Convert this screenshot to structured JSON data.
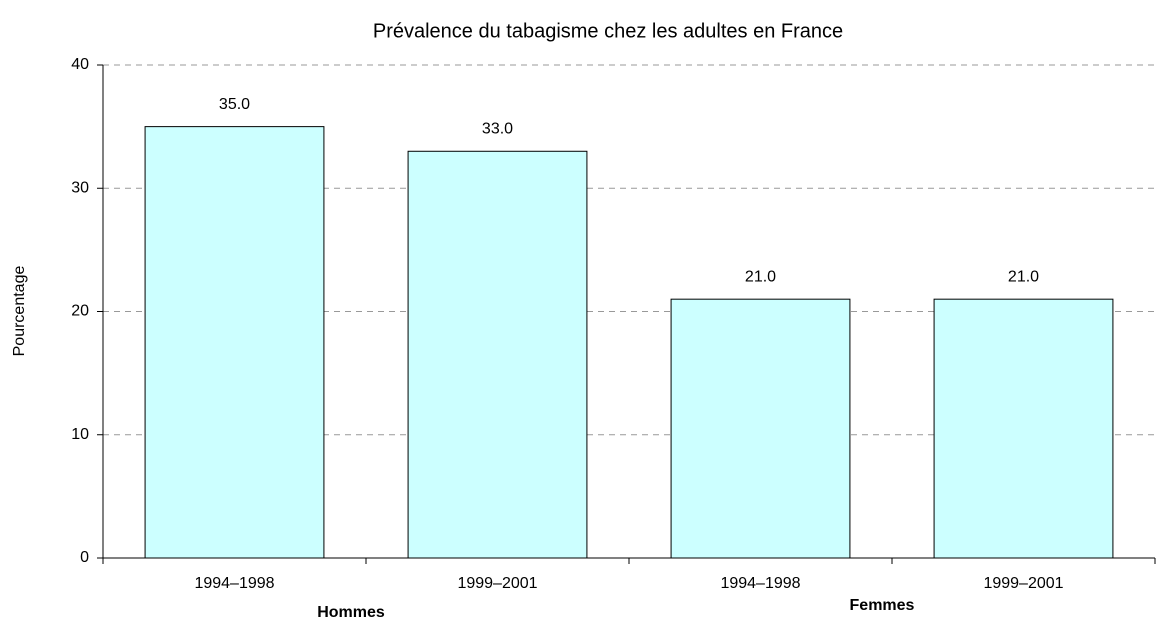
{
  "chart_data": {
    "type": "bar",
    "title": "Prévalence du tabagisme chez les adultes en France",
    "y_label": "Pourcentage",
    "categories": [
      "1994–1998",
      "1999–2001",
      "1994–1998",
      "1999–2001"
    ],
    "groups": [
      "Hommes",
      "Femmes"
    ],
    "values": [
      35,
      33,
      21,
      21
    ],
    "value_labels": [
      "35.0",
      "33.0",
      "21.0",
      "21.0"
    ],
    "color": "#ccffff",
    "ylim": [
      0,
      40
    ],
    "yticks": [
      0,
      10,
      20,
      30,
      40
    ],
    "grid": true
  }
}
